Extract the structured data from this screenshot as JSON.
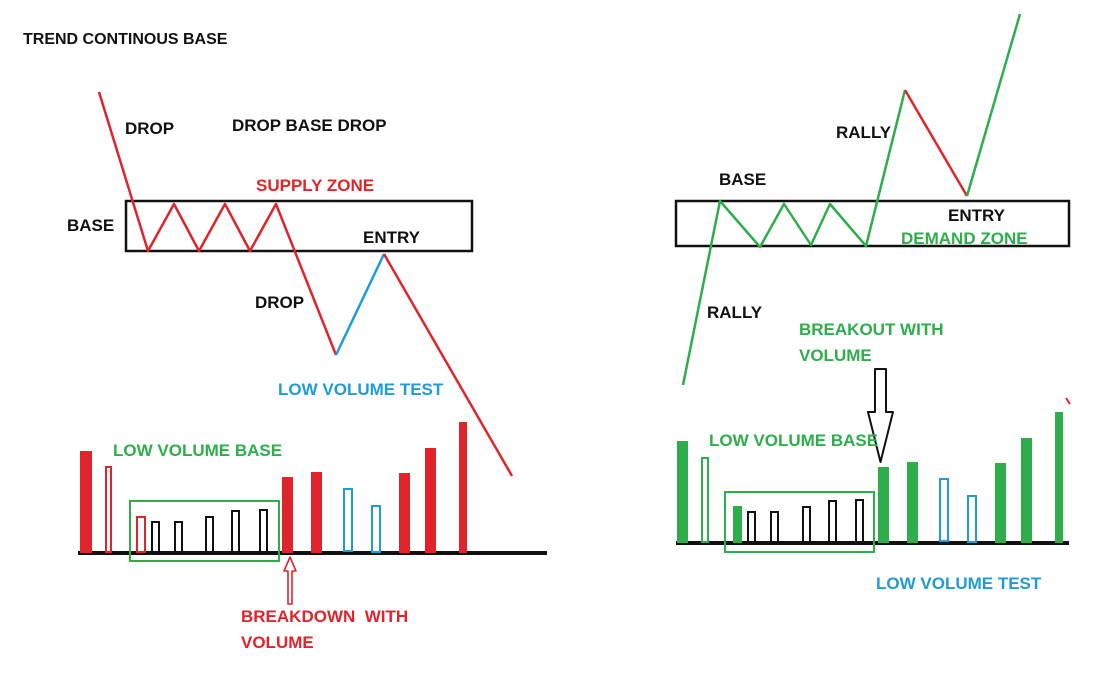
{
  "title": "TREND CONTINOUS BASE",
  "colors": {
    "black": "#111111",
    "red": "#e0242b",
    "green": "#2eae4a",
    "blue": "#1e9cd8"
  },
  "left": {
    "drop_top": "DROP",
    "pattern_name": "DROP BASE DROP",
    "zone": "SUPPLY ZONE",
    "base": "BASE",
    "entry": "ENTRY",
    "drop_mid": "DROP",
    "test": "LOW VOLUME TEST",
    "volume_base": "LOW VOLUME BASE",
    "breakdown": "BREAKDOWN  WITH",
    "breakdown_2": "VOLUME"
  },
  "right": {
    "rally_top": "RALLY",
    "base": "BASE",
    "entry": "ENTRY",
    "zone": "DEMAND ZONE",
    "rally_bottom": "RALLY",
    "breakout": "BREAKOUT WITH",
    "breakout_2": "VOLUME",
    "volume_base": "LOW VOLUME BASE",
    "test": "LOW VOLUME TEST"
  }
}
